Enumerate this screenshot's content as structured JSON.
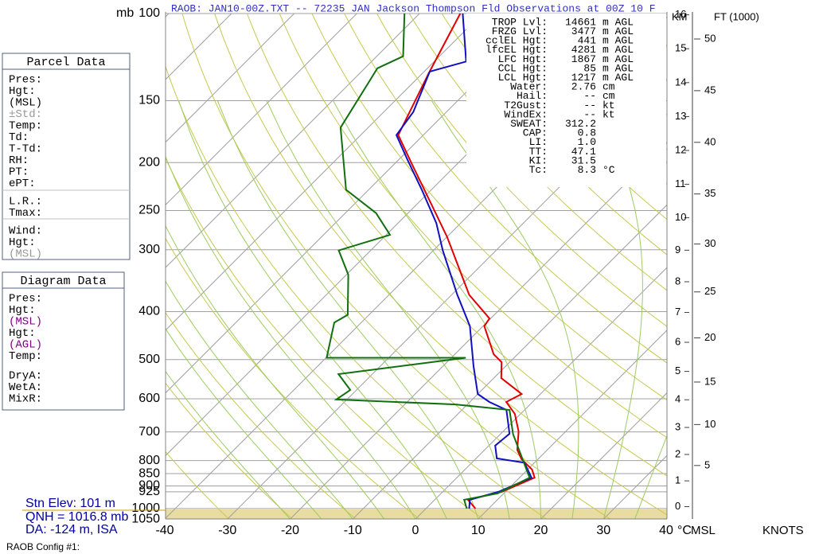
{
  "header": {
    "title": "RAOB:  JAN10-00Z.TXT  --  72235 JAN Jackson Thompson Fld Observations at 00Z 10 F"
  },
  "chart_data": {
    "type": "skewt",
    "pressure_unit": "mb",
    "temperature_unit": "°C",
    "ylim": [
      1050,
      100
    ],
    "yticks": [
      100,
      150,
      200,
      250,
      300,
      400,
      500,
      600,
      700,
      800,
      850,
      900,
      925,
      1000,
      1050
    ],
    "xlim": [
      -40,
      40
    ],
    "xticks": [
      -40,
      -30,
      -20,
      -10,
      0,
      10,
      20,
      30,
      40
    ],
    "series": [
      {
        "color": "#e00000",
        "pressure": [
          1000,
          960,
          925,
          866,
          834,
          795,
          761,
          699,
          644,
          609,
          587,
          545,
          506,
          488,
          428,
          413,
          370,
          283,
          250,
          201,
          176,
          132,
          100
        ],
        "values": [
          7.9,
          5.3,
          9.4,
          12.4,
          10.7,
          7.4,
          5.2,
          2.5,
          -0.9,
          -4.2,
          -3.0,
          -8.8,
          -11.3,
          -13.8,
          -19.8,
          -20.2,
          -27.2,
          -39.9,
          -46.2,
          -57.3,
          -64.0,
          -69.0,
          -73.5
        ]
      },
      {
        "color": "#1010c0",
        "pressure": [
          1000,
          960,
          925,
          866,
          808,
          792,
          746,
          706,
          632,
          609,
          587,
          516,
          428,
          370,
          301,
          265,
          228,
          197,
          176,
          158,
          131,
          125,
          100
        ],
        "values": [
          6.9,
          5.6,
          8.9,
          11.9,
          8.4,
          3.3,
          1.0,
          1.4,
          -2.9,
          -6.9,
          -10.0,
          -15.1,
          -22.1,
          -29.1,
          -38.5,
          -43.9,
          -51.3,
          -58.7,
          -64.3,
          -65.3,
          -69.1,
          -64.9,
          -73.1
        ]
      },
      {
        "color": "#107010",
        "pressure": [
          1000,
          960,
          932,
          866,
          707,
          632,
          616,
          602,
          576,
          535,
          496,
          496,
          421,
          406,
          337,
          301,
          280,
          253,
          227,
          170,
          136,
          129,
          122,
          100
        ],
        "values": [
          6.5,
          4.7,
          9.0,
          11.6,
          2.0,
          -2.4,
          -11.9,
          -31.7,
          -31.0,
          -35.4,
          -17.7,
          -39.9,
          -44.3,
          -43.4,
          -49.7,
          -55.1,
          -49.4,
          -55.1,
          -63.6,
          -74.4,
          -77.3,
          -78.0,
          -75.8,
          -82.4
        ]
      }
    ],
    "km_label": "KM",
    "km_ticks": [
      0,
      1,
      2,
      3,
      4,
      5,
      6,
      7,
      8,
      9,
      10,
      11,
      12,
      13,
      14,
      15,
      16
    ],
    "ft_label": "FT (1000)",
    "ft_ticks": [
      5,
      10,
      15,
      20,
      25,
      30,
      35,
      40,
      45,
      50
    ],
    "msl_label": "MSL",
    "knots_label": "KNOTS"
  },
  "stats": [
    {
      "label": "TROP Lvl:",
      "value": "14661",
      "unit": "m AGL"
    },
    {
      "label": "FRZG Lvl:",
      "value": "3477",
      "unit": "m AGL"
    },
    {
      "label": "cclEL Hgt:",
      "value": "441",
      "unit": "m AGL"
    },
    {
      "label": "lfcEL Hgt:",
      "value": "4281",
      "unit": "m AGL"
    },
    {
      "label": "LFC Hgt:",
      "value": "1867",
      "unit": "m AGL"
    },
    {
      "label": "CCL Hgt:",
      "value": "85",
      "unit": "m AGL"
    },
    {
      "label": "LCL Hgt:",
      "value": "1217",
      "unit": "m AGL"
    },
    {
      "label": "Water:",
      "value": "2.76",
      "unit": "cm"
    },
    {
      "label": "Hail:",
      "value": "--",
      "unit": "cm"
    },
    {
      "label": "T2Gust:",
      "value": "--",
      "unit": "kt"
    },
    {
      "label": "WindEx:",
      "value": "--",
      "unit": "kt"
    },
    {
      "label": "SWEAT:",
      "value": "312.2",
      "unit": ""
    },
    {
      "label": "CAP:",
      "value": "0.8",
      "unit": ""
    },
    {
      "label": "LI:",
      "value": "1.0",
      "unit": ""
    },
    {
      "label": "TT:",
      "value": "47.1",
      "unit": ""
    },
    {
      "label": "KI:",
      "value": "31.5",
      "unit": ""
    },
    {
      "label": "Tc:",
      "value": "8.3",
      "unit": "°C"
    }
  ],
  "parcel_panel": {
    "title": "Parcel Data",
    "fields": [
      "Pres:",
      "Hgt:",
      "(MSL)",
      "±Std:",
      "Temp:",
      "Td:",
      "T-Td:",
      "RH:",
      "PT:",
      "ePT:",
      "L.R.:",
      "Tmax:",
      "Wind:",
      "Hgt:",
      "(MSL)"
    ]
  },
  "diagram_panel": {
    "title": "Diagram Data",
    "fields": [
      "Pres:",
      "Hgt:",
      "(MSL)",
      "Hgt:",
      "(AGL)",
      "Temp:",
      "DryA:",
      "WetA:",
      "MixR:"
    ]
  },
  "station": {
    "elevation": "Stn Elev: 101 m",
    "qnh": "QNH = 1016.8 mb",
    "da": "DA: -124 m, ISA"
  },
  "footer": "RAOB Config #1:"
}
